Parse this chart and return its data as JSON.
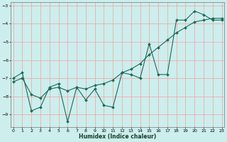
{
  "xlabel": "Humidex (Indice chaleur)",
  "bg_color": "#cceeed",
  "grid_color": "#f5a0a0",
  "line_color": "#1a6b5a",
  "line1_y": [
    -7.0,
    -6.7,
    -8.8,
    -8.6,
    -7.5,
    -7.3,
    -9.4,
    -7.5,
    -8.2,
    -7.6,
    -8.5,
    -8.6,
    -6.7,
    -6.8,
    -7.0,
    -5.1,
    -6.8,
    -6.8,
    -3.8,
    -3.8,
    -3.3,
    -3.5,
    -3.8,
    -3.8
  ],
  "line2_y": [
    -7.2,
    -7.0,
    -7.9,
    -8.1,
    -7.6,
    -7.5,
    -7.7,
    -7.5,
    -7.6,
    -7.4,
    -7.3,
    -7.1,
    -6.7,
    -6.5,
    -6.2,
    -5.7,
    -5.3,
    -4.9,
    -4.5,
    -4.2,
    -3.9,
    -3.8,
    -3.7,
    -3.7
  ],
  "xlim": [
    0,
    23
  ],
  "ylim": [
    -9.7,
    -2.8
  ],
  "yticks": [
    -9,
    -8,
    -7,
    -6,
    -5,
    -4,
    -3
  ],
  "xticks": [
    0,
    1,
    2,
    3,
    4,
    5,
    6,
    7,
    8,
    9,
    10,
    11,
    12,
    13,
    14,
    15,
    16,
    17,
    18,
    19,
    20,
    21,
    22,
    23
  ]
}
